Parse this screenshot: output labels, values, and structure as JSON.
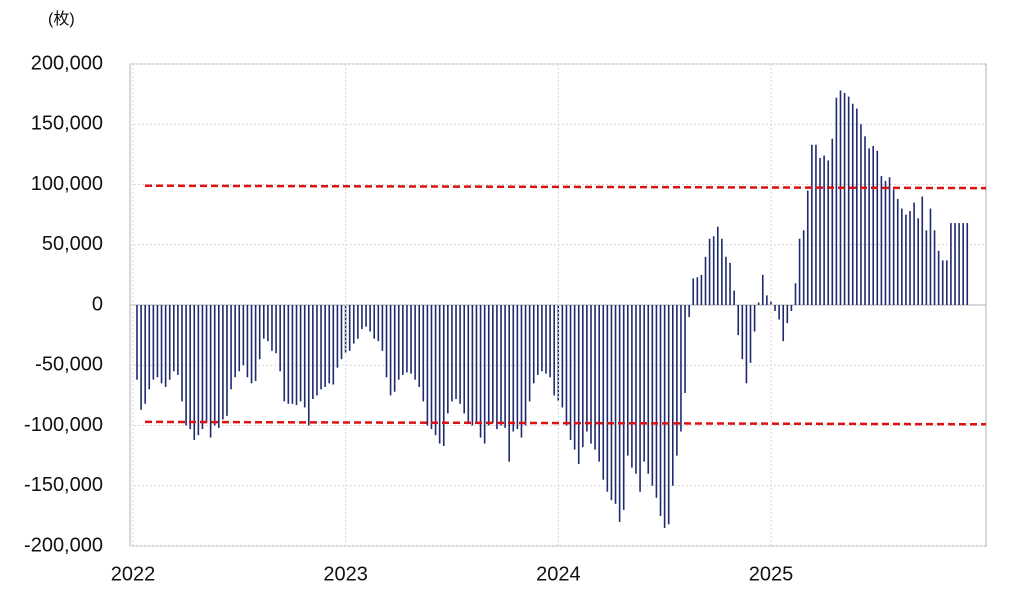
{
  "chart_data": {
    "type": "bar",
    "unit_label": "(枚)",
    "categories": [
      "2022",
      null,
      null,
      null,
      null,
      null,
      null,
      null,
      null,
      null,
      null,
      null,
      null,
      null,
      null,
      null,
      null,
      null,
      null,
      null,
      null,
      null,
      null,
      null,
      null,
      null,
      null,
      null,
      null,
      null,
      null,
      null,
      null,
      null,
      null,
      null,
      null,
      null,
      null,
      null,
      null,
      null,
      null,
      null,
      null,
      null,
      null,
      null,
      null,
      null,
      null,
      null,
      "2023",
      null,
      null,
      null,
      null,
      null,
      null,
      null,
      null,
      null,
      null,
      null,
      null,
      null,
      null,
      null,
      null,
      null,
      null,
      null,
      null,
      null,
      null,
      null,
      null,
      null,
      null,
      null,
      null,
      null,
      null,
      null,
      null,
      null,
      null,
      null,
      null,
      null,
      null,
      null,
      null,
      null,
      null,
      null,
      null,
      null,
      null,
      null,
      null,
      null,
      null,
      null,
      "2024",
      null,
      null,
      null,
      null,
      null,
      null,
      null,
      null,
      null,
      null,
      null,
      null,
      null,
      null,
      null,
      null,
      null,
      null,
      null,
      null,
      null,
      null,
      null,
      null,
      null,
      null,
      null,
      null,
      null,
      null,
      null,
      null,
      null,
      null,
      null,
      null,
      null,
      null,
      null,
      null,
      null,
      null,
      null,
      null,
      null,
      null,
      null,
      null,
      null,
      null,
      null,
      "2025",
      null,
      null,
      null,
      null,
      null,
      null,
      null,
      null,
      null,
      null,
      null,
      null,
      null,
      null,
      null,
      null,
      null,
      null,
      null,
      null,
      null,
      null,
      null,
      null,
      null,
      null,
      null,
      null,
      null,
      null,
      null,
      null,
      null,
      null,
      null,
      null,
      null,
      null,
      null,
      null,
      null,
      null,
      null,
      null,
      null,
      null,
      null
    ],
    "values": [
      -62000,
      -87000,
      -82000,
      -70000,
      -62000,
      -60000,
      -65000,
      -68000,
      -62000,
      -55000,
      -58000,
      -80000,
      -100000,
      -103000,
      -112000,
      -108000,
      -103000,
      -98000,
      -110000,
      -100000,
      -102000,
      -95000,
      -92000,
      -70000,
      -60000,
      -55000,
      -50000,
      -60000,
      -65000,
      -63000,
      -45000,
      -28000,
      -30000,
      -38000,
      -40000,
      -55000,
      -80000,
      -82000,
      -82000,
      -83000,
      -80000,
      -85000,
      -100000,
      -78000,
      -75000,
      -70000,
      -68000,
      -65000,
      -66000,
      -52000,
      -45000,
      -40000,
      -38000,
      -32000,
      -28000,
      -20000,
      -18000,
      -22000,
      -28000,
      -30000,
      -38000,
      -60000,
      -75000,
      -72000,
      -62000,
      -58000,
      -56000,
      -57000,
      -62000,
      -68000,
      -80000,
      -100000,
      -103000,
      -108000,
      -115000,
      -117000,
      -90000,
      -80000,
      -78000,
      -82000,
      -90000,
      -97000,
      -100000,
      -98000,
      -110000,
      -115000,
      -100000,
      -98000,
      -103000,
      -100000,
      -102000,
      -130000,
      -105000,
      -103000,
      -110000,
      -100000,
      -80000,
      -65000,
      -58000,
      -55000,
      -57000,
      -60000,
      -75000,
      -80000,
      -85000,
      -100000,
      -112000,
      -120000,
      -132000,
      -118000,
      -105000,
      -115000,
      -120000,
      -130000,
      -145000,
      -155000,
      -162000,
      -165000,
      -180000,
      -170000,
      -125000,
      -135000,
      -140000,
      -155000,
      -130000,
      -140000,
      -150000,
      -160000,
      -175000,
      -185000,
      -182000,
      -150000,
      -125000,
      -105000,
      -73000,
      -10000,
      22000,
      23000,
      25000,
      40000,
      55000,
      57000,
      65000,
      55000,
      40000,
      35000,
      12000,
      -25000,
      -45000,
      -65000,
      -48000,
      -22000,
      2000,
      25000,
      8000,
      3000,
      -5000,
      -12000,
      -30000,
      -15000,
      -5000,
      18000,
      55000,
      62000,
      95000,
      133000,
      133000,
      122000,
      124000,
      120000,
      138000,
      172000,
      178000,
      176000,
      173000,
      167000,
      163000,
      150000,
      140000,
      130000,
      132000,
      128000,
      107000,
      103000,
      106000,
      96000,
      88000,
      80000,
      75000,
      78000,
      85000,
      72000,
      90000,
      62000,
      80000,
      62000,
      45000,
      37000,
      37000,
      68000,
      68000,
      68000,
      68000,
      68000
    ],
    "color": "#1f2a6e",
    "ylim": [
      -200000,
      200000
    ],
    "yticks": [
      {
        "value": 200000,
        "label": "200,000"
      },
      {
        "value": 150000,
        "label": "150,000"
      },
      {
        "value": 100000,
        "label": "100,000"
      },
      {
        "value": 50000,
        "label": "50,000"
      },
      0,
      {
        "value": -50000,
        "label": "-50,000"
      },
      {
        "value": -100000,
        "label": "-100,000"
      },
      {
        "value": -150000,
        "label": "-150,000"
      },
      {
        "value": -200000,
        "label": "-200,000"
      }
    ],
    "negative_label_color": "#cc1a1a",
    "grid": true,
    "reference_lines": [
      {
        "start": 99000,
        "end": 97000,
        "color": "#dd1111"
      },
      {
        "start": -97000,
        "end": -99000,
        "color": "#dd1111"
      }
    ]
  }
}
